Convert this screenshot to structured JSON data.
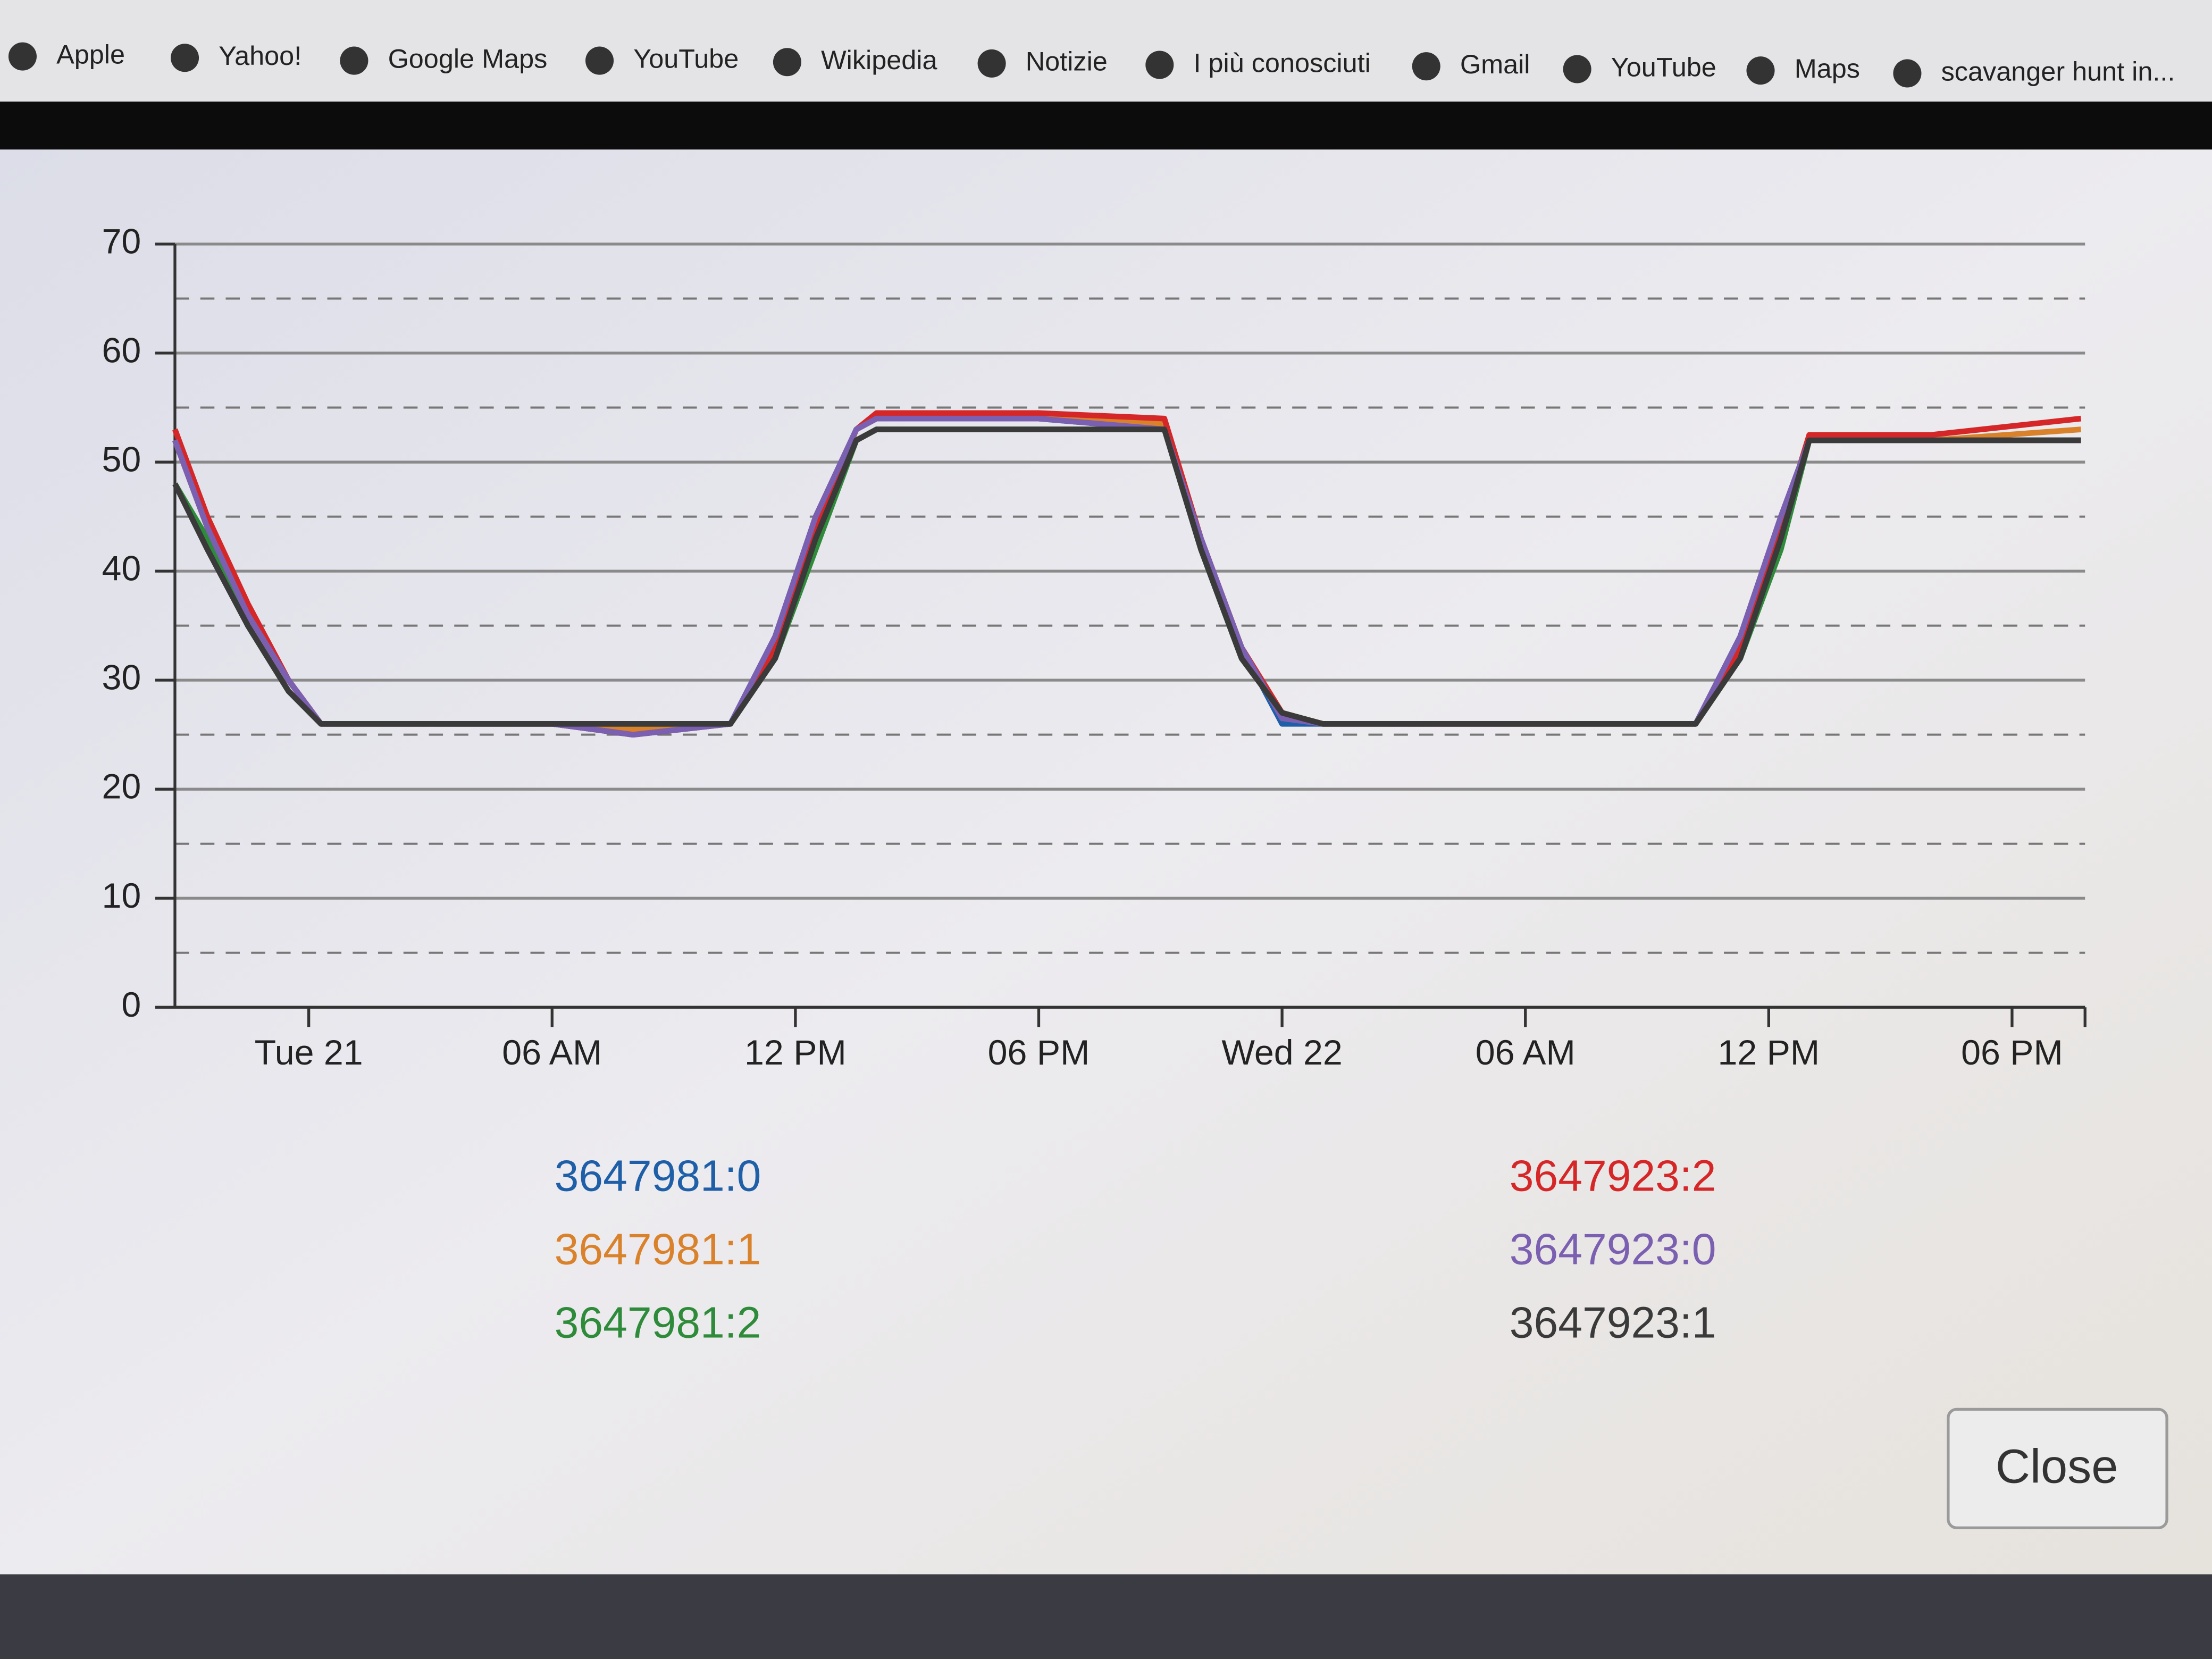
{
  "bookmarks": [
    "Apple",
    "Yahoo!",
    "Google Maps",
    "YouTube",
    "Wikipedia",
    "Notizie",
    "I più conosciuti",
    "Gmail",
    "YouTube",
    "Maps",
    "scavanger hunt in..."
  ],
  "chart_data": {
    "type": "line",
    "x": [
      -3.3,
      -2.5,
      -1.5,
      -0.5,
      0.3,
      6,
      8,
      10.4,
      11.5,
      12.5,
      13.5,
      14,
      18,
      21.1,
      22,
      23,
      24,
      25,
      30,
      34.2,
      35.3,
      36.3,
      37,
      40,
      43.7
    ],
    "xlim": [
      -3.3,
      43.8
    ],
    "xticks": [
      {
        "value": 0,
        "label": "Tue 21"
      },
      {
        "value": 6,
        "label": "06 AM"
      },
      {
        "value": 12,
        "label": "12 PM"
      },
      {
        "value": 18,
        "label": "06 PM"
      },
      {
        "value": 24,
        "label": "Wed 22"
      },
      {
        "value": 30,
        "label": "06 AM"
      },
      {
        "value": 36,
        "label": "12 PM"
      },
      {
        "value": 42,
        "label": "06 PM"
      }
    ],
    "ylim": [
      0,
      70
    ],
    "yticks": [
      0,
      10,
      20,
      30,
      40,
      50,
      60,
      70
    ],
    "grid": true,
    "minor_grid": true,
    "series": [
      {
        "name": "3647981:0",
        "color": "#1f5fa8",
        "values": [
          52,
          44,
          36,
          30,
          26,
          26,
          25,
          26,
          34,
          45,
          53,
          54,
          54,
          53,
          43,
          33,
          26,
          26,
          26,
          26,
          34,
          45,
          52,
          52,
          52
        ]
      },
      {
        "name": "3647981:1",
        "color": "#d9822b",
        "values": [
          52,
          44,
          36,
          30,
          26,
          26,
          25.5,
          26,
          33,
          44,
          53,
          54,
          54,
          53.5,
          43,
          33,
          27,
          26,
          26,
          26,
          33,
          44,
          52,
          52,
          53
        ]
      },
      {
        "name": "3647981:2",
        "color": "#2e8b3a",
        "values": [
          48,
          43,
          35,
          29,
          26,
          26,
          26,
          26,
          32,
          42,
          52,
          53,
          53,
          53,
          42,
          32,
          27,
          26,
          26,
          26,
          32,
          42,
          52,
          52,
          52
        ]
      },
      {
        "name": "3647923:2",
        "color": "#d62728",
        "values": [
          53,
          45,
          37,
          30,
          26,
          26,
          25,
          26,
          33,
          44,
          53,
          54.5,
          54.5,
          54,
          43,
          33,
          27,
          26,
          26,
          26,
          33,
          44,
          52.5,
          52.5,
          54
        ]
      },
      {
        "name": "3647923:0",
        "color": "#7b5fb0",
        "values": [
          52,
          44,
          36,
          30,
          26,
          26,
          25,
          26,
          34,
          45,
          53,
          54,
          54,
          53,
          43,
          33,
          26.5,
          26,
          26,
          26,
          34,
          45,
          52,
          52,
          52
        ]
      },
      {
        "name": "3647923:1",
        "color": "#3a3a3a",
        "values": [
          48,
          42,
          35,
          29,
          26,
          26,
          26,
          26,
          32,
          43,
          52,
          53,
          53,
          53,
          42,
          32,
          27,
          26,
          26,
          26,
          32,
          43,
          52,
          52,
          52
        ]
      }
    ]
  },
  "button": "Close"
}
